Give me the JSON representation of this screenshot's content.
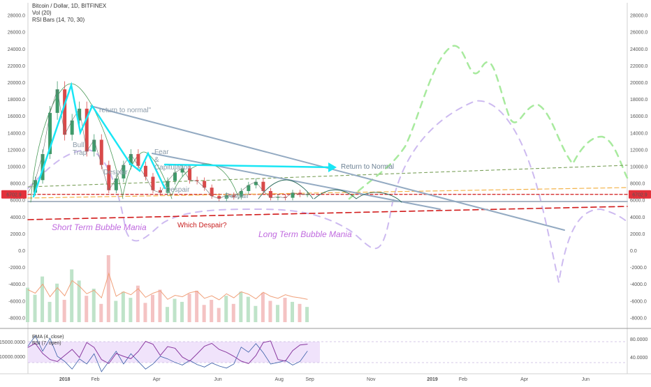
{
  "legend": {
    "title": "Bitcoin / Dollar, 1D, BITFINEX",
    "vol": "Vol (20)",
    "rsi_bars": "RSI Bars (14, 70, 30)",
    "ema": "EMA (4, close)",
    "rsi": "RSI (7, open)"
  },
  "price_badge": "6702.9",
  "colors": {
    "cyan": "#19e6f5",
    "steel": "#93aac2",
    "green_dash": "#a8ea9e",
    "lavender_dash": "#cdbaf0",
    "red_dash": "#d11a1a",
    "orange_dash": "#f3b34a",
    "olive_dash": "#7aa05a",
    "annot_purple": "#c06adf",
    "annot_red": "#c81e1e",
    "annot_gray": "#8a9aa8",
    "candle_up": "#3f9a6a",
    "candle_down": "#d84a4a",
    "badge": "#e3313b"
  },
  "annotations": {
    "return_quote": "return to normal\"",
    "bull_trap_1": "Bull",
    "bull_trap_2": "Trap",
    "despair1": "Despair",
    "fear": "Fear",
    "amp": "&",
    "capitulation": "Capitulation",
    "despair2": "Despair",
    "despair3": "Despair",
    "return_to_normal": "Return to Normal",
    "which_despair": "Which Despair?",
    "short_term": "Short Term Bubble Mania",
    "long_term": "Long Term Bubble Mania"
  },
  "chart_data": [
    {
      "type": "line",
      "title": "Bitcoin / Dollar, 1D, BITFINEX",
      "y_ticks": [
        "28000.0",
        "26000.0",
        "24000.0",
        "22000.0",
        "20000.0",
        "18000.0",
        "16000.0",
        "14000.0",
        "12000.0",
        "10000.0",
        "8000.0",
        "6000.0",
        "4000.0",
        "2000.0",
        "0.0",
        "-2000.0",
        "-4000.0",
        "-6000.0",
        "-8000.0"
      ],
      "y_tick_values": [
        28000,
        26000,
        24000,
        22000,
        20000,
        18000,
        16000,
        14000,
        12000,
        10000,
        8000,
        6000,
        4000,
        2000,
        0,
        -2000,
        -4000,
        -6000,
        -8000
      ],
      "x_ticks": [
        "2018",
        "Feb",
        "Apr",
        "Jun",
        "Aug",
        "Sep",
        "Nov",
        "2019",
        "Feb",
        "Apr",
        "Jun"
      ],
      "x_tick_months": [
        2018.0,
        2018.0833,
        2018.25,
        2018.4167,
        2018.5833,
        2018.6667,
        2018.8333,
        2019.0,
        2019.0833,
        2019.25,
        2019.4167
      ],
      "x_range": [
        2017.9,
        2019.53
      ],
      "ylim": [
        -9000,
        29500
      ],
      "current_price": 6702.9,
      "series": [
        {
          "x": [
            2017.9,
            2017.92,
            2017.94,
            2017.96,
            2017.98,
            2018.0,
            2018.02,
            2018.04,
            2018.06,
            2018.08,
            2018.1,
            2018.12,
            2018.14,
            2018.16,
            2018.18,
            2018.2,
            2018.22,
            2018.24,
            2018.26,
            2018.28,
            2018.3,
            2018.32,
            2018.34,
            2018.36,
            2018.38,
            2018.4,
            2018.42,
            2018.44,
            2018.46,
            2018.48,
            2018.5,
            2018.52,
            2018.54,
            2018.56,
            2018.58,
            2018.6,
            2018.62,
            2018.64,
            2018.66
          ],
          "values": [
            6900,
            8400,
            11500,
            16400,
            19200,
            13800,
            15500,
            16900,
            11800,
            13200,
            10200,
            7200,
            8600,
            10200,
            11500,
            10100,
            8800,
            7200,
            6900,
            8300,
            9300,
            9800,
            8400,
            8300,
            7500,
            6500,
            6200,
            6600,
            6400,
            7100,
            7800,
            8200,
            7100,
            6300,
            6400,
            6300,
            6900,
            6700,
            6702.9
          ]
        }
      ],
      "volume_values": [
        3400,
        2700,
        4500,
        2000,
        3800,
        2200,
        5200,
        4100,
        2600,
        3300,
        1800,
        6600,
        2100,
        3000,
        2400,
        3600,
        1900,
        2700,
        3200,
        1500,
        2300,
        2000,
        2800,
        3100,
        1700,
        2200,
        1400,
        2600,
        1800,
        3000,
        2500,
        1600,
        2900,
        2100,
        1700,
        2400,
        2000,
        1800,
        1500
      ],
      "ema_values": [
        14000,
        16000,
        13000,
        15500,
        12000,
        11000,
        9500,
        11500,
        10500,
        12500,
        9000,
        11000,
        13000,
        10500,
        12500,
        11000,
        9500,
        10500,
        12000,
        11500,
        10800,
        10300,
        11200,
        10400,
        9900,
        10700,
        10100,
        9700,
        10500,
        13800,
        12800,
        14500,
        12700,
        10500,
        10800,
        11200,
        10300,
        11000,
        13000
      ],
      "rsi_values": [
        60,
        70,
        45,
        30,
        25,
        40,
        55,
        35,
        72,
        60,
        30,
        20,
        45,
        38,
        32,
        50,
        75,
        68,
        40,
        62,
        58,
        36,
        26,
        44,
        63,
        70,
        55,
        48,
        38,
        26,
        20,
        40,
        72,
        76,
        30,
        26,
        52,
        66,
        68
      ]
    }
  ]
}
